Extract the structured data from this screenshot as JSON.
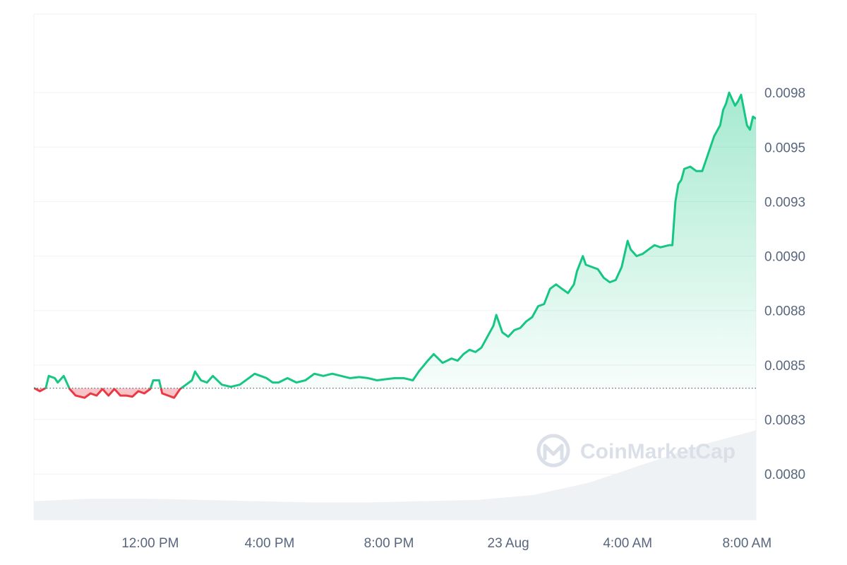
{
  "chart_data": {
    "type": "area",
    "title": "",
    "xlabel": "",
    "ylabel": "",
    "baseline": 0.008444,
    "ylim": [
      0.00784,
      0.01016
    ],
    "y_ticks": [
      "0.0098",
      "0.0095",
      "0.0093",
      "0.0090",
      "0.0088",
      "0.0085",
      "0.0083",
      "0.0080"
    ],
    "y_tick_values": [
      0.0098,
      0.00955,
      0.0093,
      0.00905,
      0.0088,
      0.00855,
      0.0083,
      0.00805
    ],
    "x_ticks": [
      "12:00 PM",
      "4:00 PM",
      "8:00 PM",
      "23 Aug",
      "4:00 AM",
      "8:00 AM"
    ],
    "x_tick_hours": [
      12,
      16,
      20,
      24,
      28,
      32
    ],
    "x_range_hours": [
      8.1,
      32.3
    ],
    "series": [
      {
        "values": [
          [
            8.1,
            0.008445
          ],
          [
            8.3,
            0.00843
          ],
          [
            8.5,
            0.008445
          ],
          [
            8.6,
            0.0085
          ],
          [
            8.8,
            0.00849
          ],
          [
            8.9,
            0.00847
          ],
          [
            9.1,
            0.0085
          ],
          [
            9.3,
            0.00844
          ],
          [
            9.5,
            0.00841
          ],
          [
            9.8,
            0.0084
          ],
          [
            10.0,
            0.00842
          ],
          [
            10.2,
            0.00841
          ],
          [
            10.4,
            0.00844
          ],
          [
            10.6,
            0.00841
          ],
          [
            10.8,
            0.00844
          ],
          [
            11.0,
            0.00841
          ],
          [
            11.2,
            0.00841
          ],
          [
            11.4,
            0.008405
          ],
          [
            11.6,
            0.00843
          ],
          [
            11.8,
            0.00842
          ],
          [
            12.0,
            0.00844
          ],
          [
            12.1,
            0.00848
          ],
          [
            12.3,
            0.00848
          ],
          [
            12.4,
            0.00842
          ],
          [
            12.6,
            0.00841
          ],
          [
            12.8,
            0.0084
          ],
          [
            13.0,
            0.00844
          ],
          [
            13.2,
            0.00846
          ],
          [
            13.4,
            0.00848
          ],
          [
            13.5,
            0.00852
          ],
          [
            13.7,
            0.00848
          ],
          [
            13.9,
            0.00847
          ],
          [
            14.1,
            0.0085
          ],
          [
            14.4,
            0.00846
          ],
          [
            14.7,
            0.00845
          ],
          [
            15.0,
            0.00846
          ],
          [
            15.3,
            0.00849
          ],
          [
            15.5,
            0.00851
          ],
          [
            15.7,
            0.0085
          ],
          [
            15.9,
            0.00849
          ],
          [
            16.1,
            0.00847
          ],
          [
            16.3,
            0.00847
          ],
          [
            16.6,
            0.00849
          ],
          [
            16.9,
            0.00847
          ],
          [
            17.2,
            0.00848
          ],
          [
            17.5,
            0.00851
          ],
          [
            17.8,
            0.0085
          ],
          [
            18.1,
            0.00851
          ],
          [
            18.4,
            0.0085
          ],
          [
            18.7,
            0.00849
          ],
          [
            19.0,
            0.008495
          ],
          [
            19.3,
            0.00849
          ],
          [
            19.6,
            0.00848
          ],
          [
            19.9,
            0.008485
          ],
          [
            20.2,
            0.00849
          ],
          [
            20.5,
            0.00849
          ],
          [
            20.8,
            0.00848
          ],
          [
            21.0,
            0.00852
          ],
          [
            21.3,
            0.00857
          ],
          [
            21.5,
            0.0086
          ],
          [
            21.8,
            0.00856
          ],
          [
            22.1,
            0.00858
          ],
          [
            22.3,
            0.00857
          ],
          [
            22.5,
            0.0086
          ],
          [
            22.7,
            0.00862
          ],
          [
            22.9,
            0.00861
          ],
          [
            23.1,
            0.00863
          ],
          [
            23.3,
            0.00868
          ],
          [
            23.5,
            0.00873
          ],
          [
            23.6,
            0.00878
          ],
          [
            23.8,
            0.0087
          ],
          [
            24.0,
            0.00868
          ],
          [
            24.2,
            0.00871
          ],
          [
            24.4,
            0.00872
          ],
          [
            24.6,
            0.00875
          ],
          [
            24.8,
            0.00877
          ],
          [
            25.0,
            0.00882
          ],
          [
            25.2,
            0.00883
          ],
          [
            25.4,
            0.0089
          ],
          [
            25.6,
            0.00892
          ],
          [
            25.8,
            0.0089
          ],
          [
            26.0,
            0.00888
          ],
          [
            26.2,
            0.00892
          ],
          [
            26.3,
            0.00898
          ],
          [
            26.5,
            0.00905
          ],
          [
            26.6,
            0.00901
          ],
          [
            26.8,
            0.009
          ],
          [
            27.0,
            0.00899
          ],
          [
            27.2,
            0.00895
          ],
          [
            27.4,
            0.00893
          ],
          [
            27.6,
            0.00894
          ],
          [
            27.8,
            0.009
          ],
          [
            27.9,
            0.00906
          ],
          [
            28.0,
            0.00912
          ],
          [
            28.1,
            0.00908
          ],
          [
            28.3,
            0.00905
          ],
          [
            28.5,
            0.00906
          ],
          [
            28.7,
            0.00908
          ],
          [
            28.9,
            0.0091
          ],
          [
            29.1,
            0.00909
          ],
          [
            29.4,
            0.0091
          ],
          [
            29.5,
            0.0091
          ],
          [
            29.6,
            0.0093
          ],
          [
            29.7,
            0.00938
          ],
          [
            29.8,
            0.0094
          ],
          [
            29.9,
            0.00945
          ],
          [
            30.1,
            0.00946
          ],
          [
            30.3,
            0.00944
          ],
          [
            30.5,
            0.00944
          ],
          [
            30.7,
            0.00952
          ],
          [
            30.9,
            0.0096
          ],
          [
            31.1,
            0.00965
          ],
          [
            31.2,
            0.00972
          ],
          [
            31.3,
            0.00975
          ],
          [
            31.4,
            0.0098
          ],
          [
            31.6,
            0.00974
          ],
          [
            31.7,
            0.00976
          ],
          [
            31.8,
            0.00979
          ],
          [
            32.0,
            0.00965
          ],
          [
            32.1,
            0.00963
          ],
          [
            32.2,
            0.00969
          ],
          [
            32.3,
            0.00968
          ]
        ]
      }
    ],
    "volume_relative": [
      0.15,
      0.17,
      0.17,
      0.16,
      0.15,
      0.14,
      0.14,
      0.15,
      0.16,
      0.2,
      0.3,
      0.45,
      0.6,
      0.72
    ],
    "grid": true,
    "colors": {
      "up_line": "#16c784",
      "down_line": "#ea3943",
      "grid": "#eff2f5",
      "baseline": "#58667e",
      "volume": "#eff2f5",
      "axis_text": "#58667e",
      "watermark": "#dbe0e8"
    }
  },
  "watermark": {
    "text": "CoinMarketCap",
    "icon": "coinmarketcap-logo-icon"
  }
}
